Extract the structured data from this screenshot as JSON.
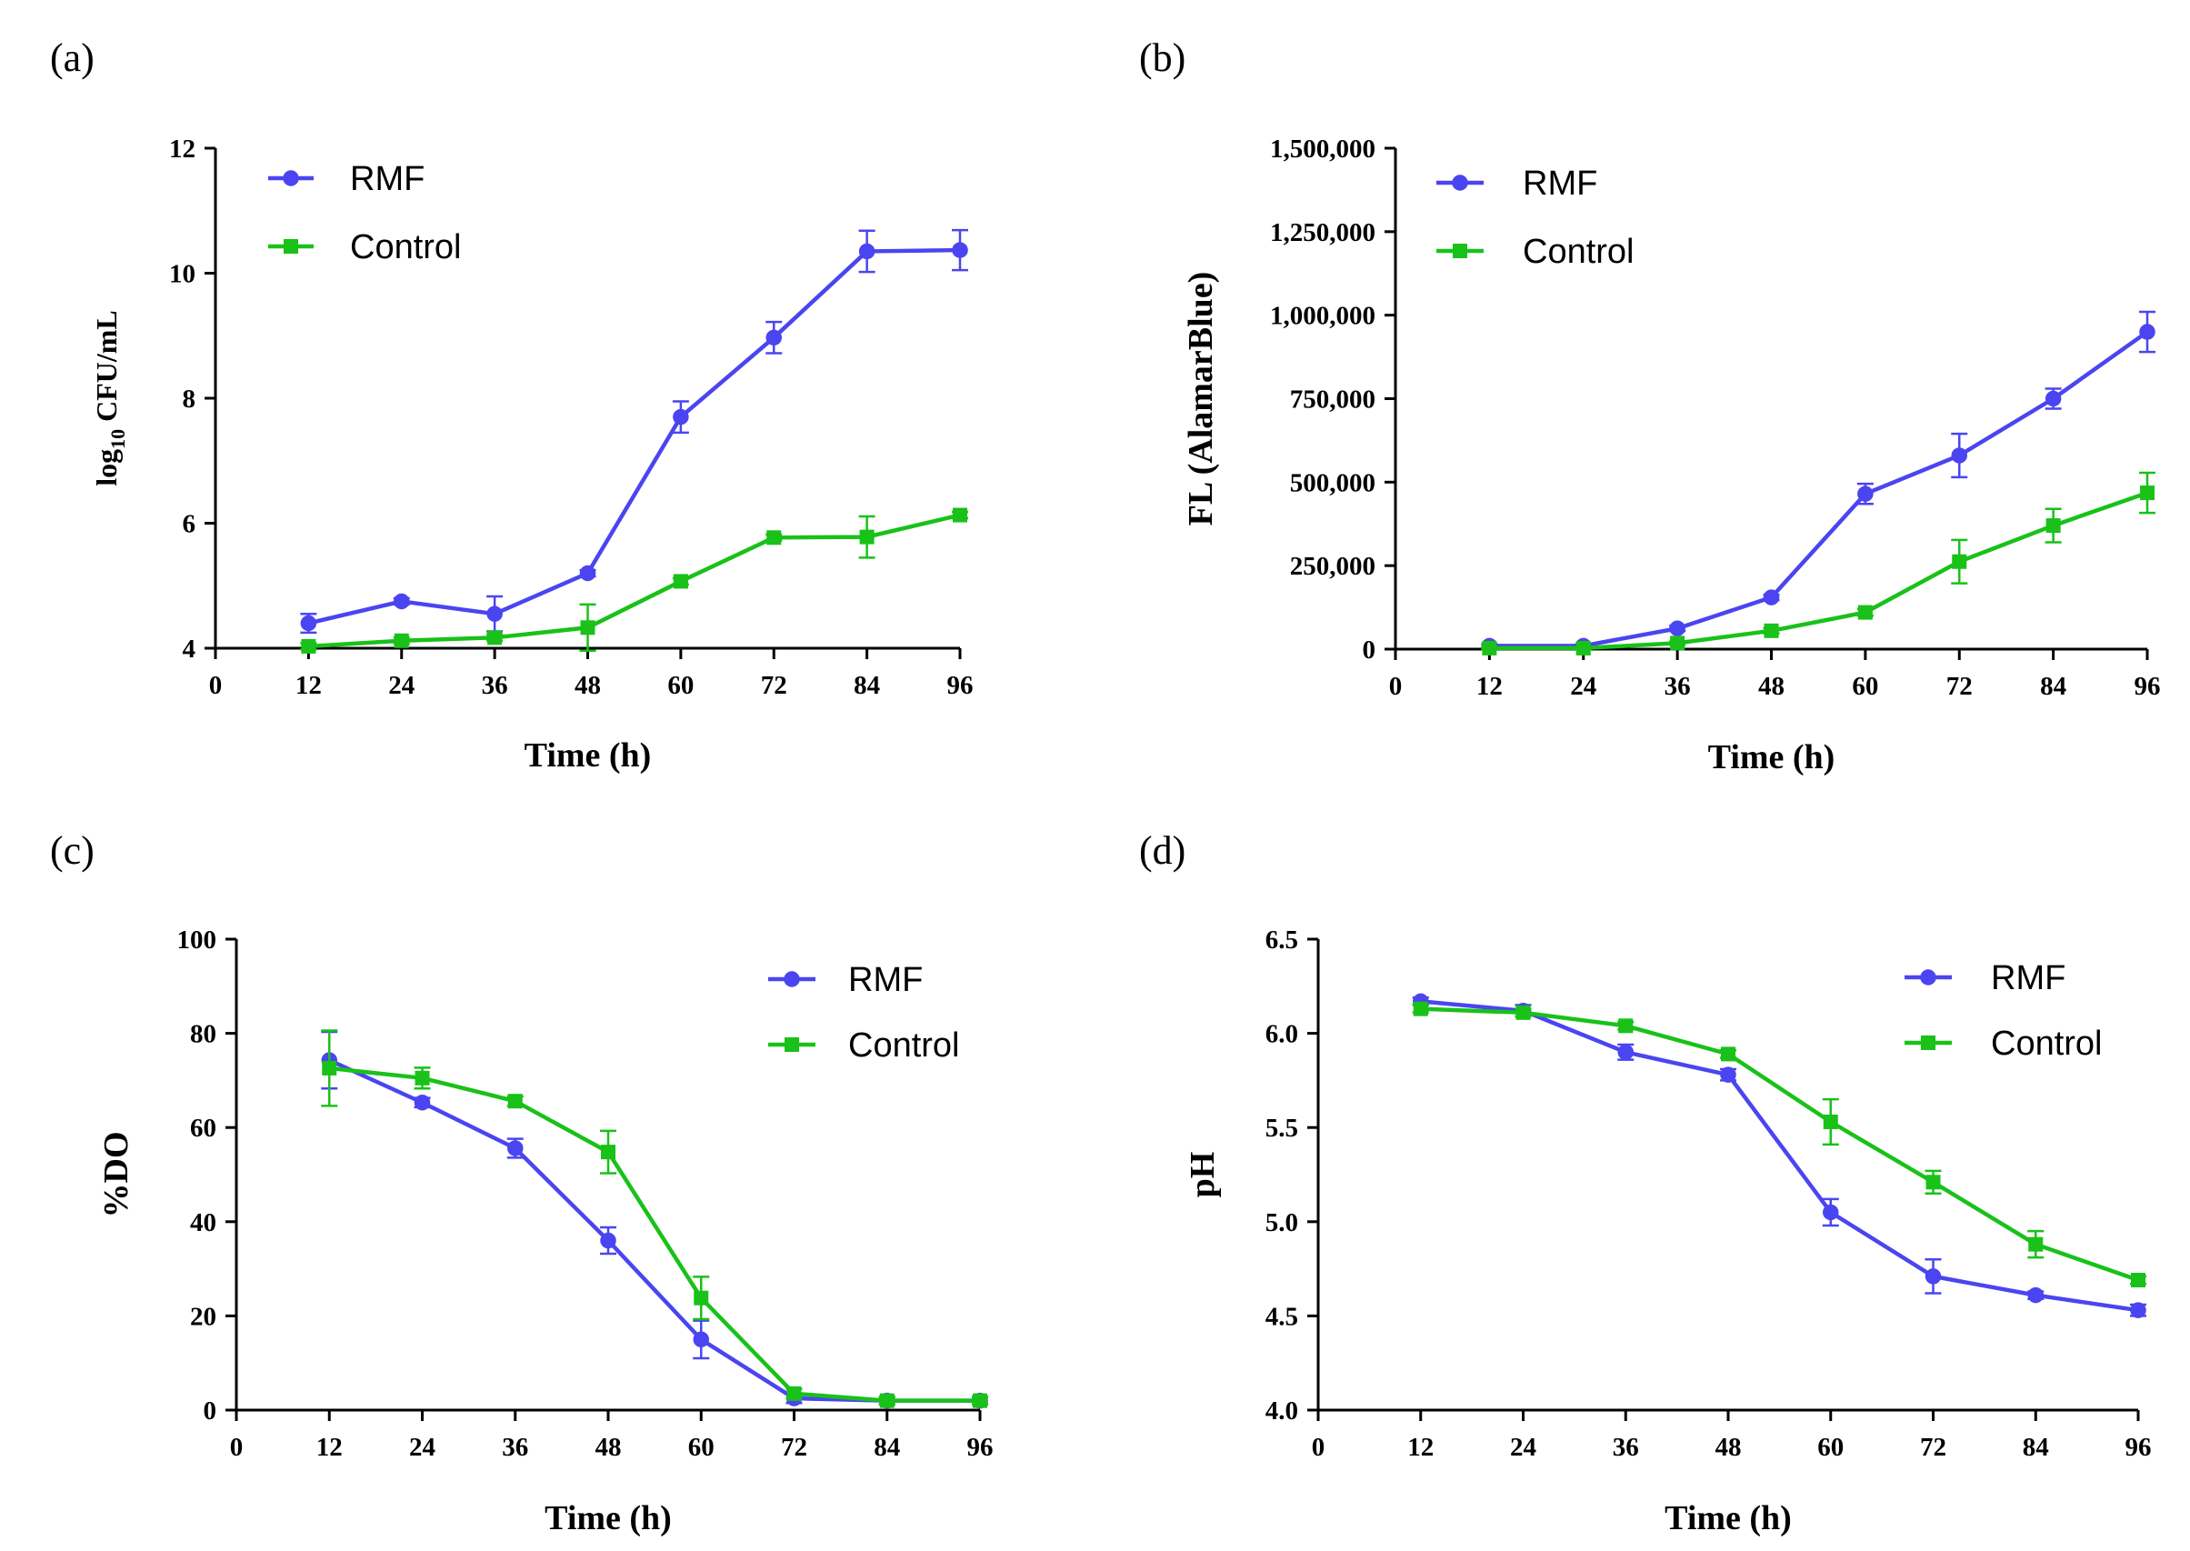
{
  "colors": {
    "rmf": "#4a45f0",
    "control": "#19c119",
    "axis": "#000000"
  },
  "chart_data": [
    {
      "panel": "(a)",
      "type": "line",
      "xlabel": "Time (h)",
      "ylabel": "log10 CFU/mL",
      "ylabel_parts": {
        "base": "log",
        "sub": "10",
        "rest": " CFU/mL"
      },
      "xlim": [
        0,
        96
      ],
      "ylim": [
        4,
        12
      ],
      "xticks": [
        0,
        12,
        24,
        36,
        48,
        60,
        72,
        84,
        96
      ],
      "xtick_labels": [
        "0",
        "12",
        "24",
        "36",
        "48",
        "60",
        "72",
        "84",
        "96"
      ],
      "yticks": [
        4,
        6,
        8,
        10,
        12
      ],
      "ytick_labels": [
        "4",
        "6",
        "8",
        "10",
        "12"
      ],
      "legend": {
        "position": "top-left"
      },
      "series": [
        {
          "name": "RMF",
          "marker": "circle",
          "x": [
            12,
            24,
            36,
            48,
            60,
            72,
            84,
            96
          ],
          "values": [
            4.4,
            4.75,
            4.55,
            5.2,
            7.7,
            8.97,
            10.35,
            10.37
          ],
          "error": [
            0.15,
            0.05,
            0.28,
            0.05,
            0.25,
            0.25,
            0.33,
            0.32
          ]
        },
        {
          "name": "Control",
          "marker": "square",
          "x": [
            12,
            24,
            36,
            48,
            60,
            72,
            84,
            96
          ],
          "values": [
            4.03,
            4.12,
            4.17,
            4.33,
            5.07,
            5.77,
            5.78,
            6.13
          ],
          "error": [
            0.05,
            0.05,
            0.05,
            0.37,
            0.05,
            0.05,
            0.33,
            0.05
          ]
        }
      ]
    },
    {
      "panel": "(b)",
      "type": "line",
      "xlabel": "Time (h)",
      "ylabel": "FL (AlamarBlue)",
      "xlim": [
        0,
        96
      ],
      "ylim": [
        0,
        1500000
      ],
      "xticks": [
        0,
        12,
        24,
        36,
        48,
        60,
        72,
        84,
        96
      ],
      "xtick_labels": [
        "0",
        "12",
        "24",
        "36",
        "48",
        "60",
        "72",
        "84",
        "96"
      ],
      "yticks": [
        0,
        250000,
        500000,
        750000,
        1000000,
        1250000,
        1500000
      ],
      "ytick_labels": [
        "0",
        "250,000",
        "500,000",
        "750,000",
        "1,000,000",
        "1,250,000",
        "1,500,000"
      ],
      "legend": {
        "position": "top-left"
      },
      "series": [
        {
          "name": "RMF",
          "marker": "circle",
          "x": [
            12,
            24,
            36,
            48,
            60,
            72,
            84,
            96
          ],
          "values": [
            10000,
            10000,
            62000,
            155000,
            465000,
            580000,
            750000,
            950000
          ],
          "error": [
            5000,
            5000,
            8000,
            8000,
            30000,
            65000,
            30000,
            60000
          ]
        },
        {
          "name": "Control",
          "marker": "square",
          "x": [
            12,
            24,
            36,
            48,
            60,
            72,
            84,
            96
          ],
          "values": [
            3000,
            3000,
            18000,
            55000,
            110000,
            262000,
            370000,
            468000
          ],
          "error": [
            3000,
            3000,
            5000,
            8000,
            10000,
            65000,
            50000,
            60000
          ]
        }
      ]
    },
    {
      "panel": "(c)",
      "type": "line",
      "xlabel": "Time (h)",
      "ylabel": "%DO",
      "xlim": [
        0,
        96
      ],
      "ylim": [
        0,
        100
      ],
      "xticks": [
        0,
        12,
        24,
        36,
        48,
        60,
        72,
        84,
        96
      ],
      "xtick_labels": [
        "0",
        "12",
        "24",
        "36",
        "48",
        "60",
        "72",
        "84",
        "96"
      ],
      "yticks": [
        0,
        20,
        40,
        60,
        80,
        100
      ],
      "ytick_labels": [
        "0",
        "20",
        "40",
        "60",
        "80",
        "100"
      ],
      "legend": {
        "position": "top-right"
      },
      "series": [
        {
          "name": "RMF",
          "marker": "circle",
          "x": [
            12,
            24,
            36,
            48,
            60,
            72,
            84,
            96
          ],
          "values": [
            74.3,
            65.3,
            55.6,
            36.0,
            15.0,
            2.5,
            2.0,
            2.0
          ],
          "error": [
            6.0,
            1.0,
            2.0,
            2.8,
            4.0,
            1.0,
            0.8,
            0.8
          ]
        },
        {
          "name": "Control",
          "marker": "square",
          "x": [
            12,
            24,
            36,
            48,
            60,
            72,
            84,
            96
          ],
          "values": [
            72.6,
            70.5,
            65.6,
            54.8,
            23.8,
            3.5,
            2.0,
            2.0
          ],
          "error": [
            8.0,
            2.2,
            1.0,
            4.5,
            4.5,
            1.0,
            0.8,
            0.8
          ]
        }
      ]
    },
    {
      "panel": "(d)",
      "type": "line",
      "xlabel": "Time (h)",
      "ylabel": "pH",
      "xlim": [
        0,
        96
      ],
      "ylim": [
        4.0,
        6.5
      ],
      "xticks": [
        0,
        12,
        24,
        36,
        48,
        60,
        72,
        84,
        96
      ],
      "xtick_labels": [
        "0",
        "12",
        "24",
        "36",
        "48",
        "60",
        "72",
        "84",
        "96"
      ],
      "yticks": [
        4.0,
        4.5,
        5.0,
        5.5,
        6.0,
        6.5
      ],
      "ytick_labels": [
        "4.0",
        "4.5",
        "5.0",
        "5.5",
        "6.0",
        "6.5"
      ],
      "legend": {
        "position": "top-right"
      },
      "series": [
        {
          "name": "RMF",
          "marker": "circle",
          "x": [
            12,
            24,
            36,
            48,
            60,
            72,
            84,
            96
          ],
          "values": [
            6.17,
            6.12,
            5.9,
            5.78,
            5.05,
            4.71,
            4.61,
            4.53
          ],
          "error": [
            0.02,
            0.03,
            0.04,
            0.03,
            0.07,
            0.09,
            0.02,
            0.03
          ]
        },
        {
          "name": "Control",
          "marker": "square",
          "x": [
            12,
            24,
            36,
            48,
            60,
            72,
            84,
            96
          ],
          "values": [
            6.13,
            6.11,
            6.04,
            5.89,
            5.53,
            5.21,
            4.88,
            4.69
          ],
          "error": [
            0.02,
            0.02,
            0.02,
            0.02,
            0.12,
            0.06,
            0.07,
            0.02
          ]
        }
      ]
    }
  ]
}
